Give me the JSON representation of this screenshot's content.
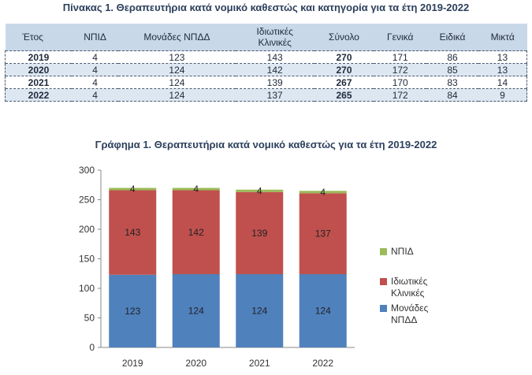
{
  "table": {
    "title": "Πίνακας 1. Θεραπευτήρια κατά νομικό καθεστώς και κατηγορία για τα έτη 2019-2022",
    "headers": [
      "Έτος",
      "ΝΠΙΔ",
      "Μονάδες ΝΠΔΔ",
      "Ιδιωτικές Κλινικές",
      "Σύνολο",
      "Γενικά",
      "Ειδικά",
      "Μικτά"
    ],
    "rows": [
      [
        "2019",
        "4",
        "123",
        "143",
        "270",
        "171",
        "86",
        "13"
      ],
      [
        "2020",
        "4",
        "124",
        "142",
        "270",
        "172",
        "85",
        "13"
      ],
      [
        "2021",
        "4",
        "124",
        "139",
        "267",
        "170",
        "83",
        "14"
      ],
      [
        "2022",
        "4",
        "124",
        "137",
        "265",
        "172",
        "84",
        "9"
      ]
    ]
  },
  "chart_data": {
    "type": "bar",
    "stacked": true,
    "title": "Γράφημα 1. Θεραπευτήρια κατά νομικό καθεστώς για τα έτη 2019-2022",
    "categories": [
      "2019",
      "2020",
      "2021",
      "2022"
    ],
    "series": [
      {
        "name": "Μονάδες ΝΠΔΔ",
        "values": [
          123,
          124,
          124,
          124
        ],
        "color": "#4f81bd"
      },
      {
        "name": "Ιδιωτικές Κλινικές",
        "values": [
          143,
          142,
          139,
          137
        ],
        "color": "#c0504d"
      },
      {
        "name": "ΝΠΙΔ",
        "values": [
          4,
          4,
          4,
          4
        ],
        "color": "#9bbb59"
      }
    ],
    "ylim": [
      0,
      300
    ],
    "yticks": [
      0,
      50,
      100,
      150,
      200,
      250,
      300
    ],
    "xlabel": "",
    "ylabel": "",
    "legend_position": "right",
    "grid": false
  }
}
